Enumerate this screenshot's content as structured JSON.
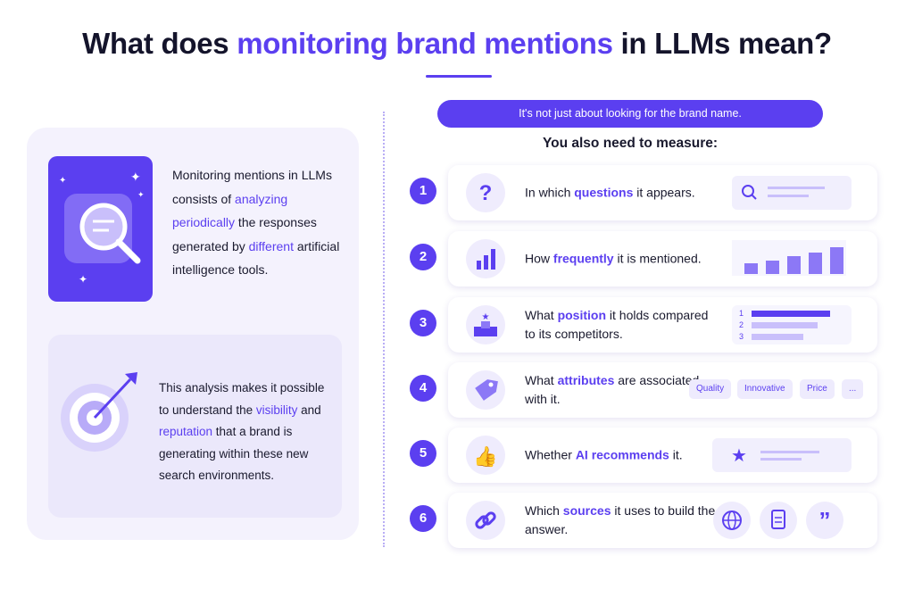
{
  "title": [
    "What does ",
    "monitoring brand mentions",
    " in LLMs mean?"
  ],
  "left_panel": {
    "intro": [
      "Monitoring mentions in LLMs consists of ",
      "analyzing periodically",
      " the responses generated by ",
      "different",
      " artificial intelligence tools."
    ],
    "analysis": [
      "This analysis makes it possible to understand the ",
      "visibility",
      " and ",
      "reputation",
      " that a brand is generating within these new search environments."
    ]
  },
  "banner": "It's not just about looking for the brand name.",
  "subtitle": "You also need to measure:",
  "items": [
    {
      "number": "1",
      "text": [
        "In which ",
        "questions",
        " it appears."
      ]
    },
    {
      "number": "2",
      "text": [
        "How ",
        "frequently",
        " it is mentioned."
      ]
    },
    {
      "number": "3",
      "text": [
        "What ",
        "position",
        " it holds compared to its competitors."
      ],
      "ranks": [
        "1",
        "2",
        "3"
      ]
    },
    {
      "number": "4",
      "text": [
        "What ",
        "attributes",
        " are associated with it."
      ],
      "tags": [
        "Quality",
        "Innovative",
        "Price",
        "..."
      ]
    },
    {
      "number": "5",
      "text": [
        "Whether ",
        "AI recommends",
        " it."
      ]
    },
    {
      "number": "6",
      "text": [
        "Which ",
        "sources",
        " it uses to build the answer."
      ]
    }
  ]
}
